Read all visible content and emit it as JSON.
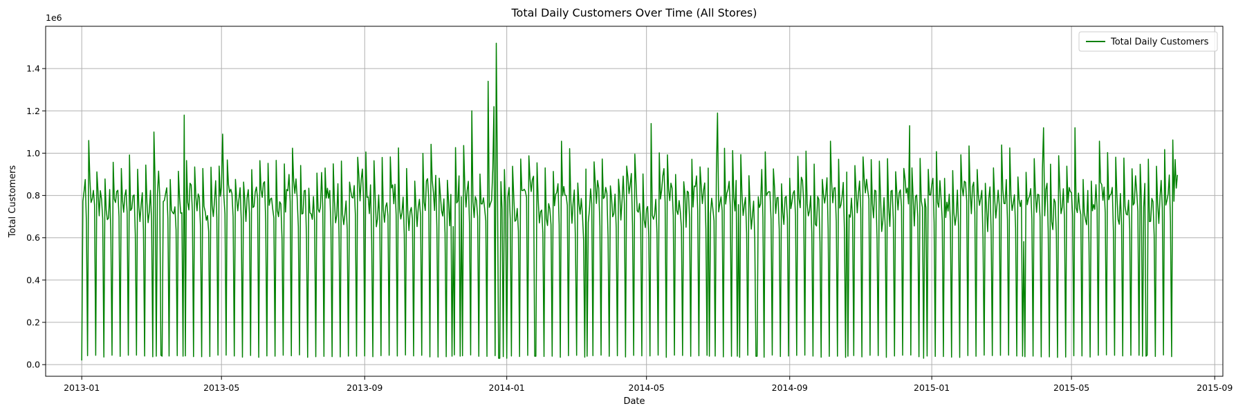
{
  "chart_data": {
    "type": "line",
    "title": "Total Daily Customers Over Time (All Stores)",
    "xlabel": "Date",
    "ylabel": "Total Customers",
    "y_offset_label": "1e6",
    "x_range": [
      "2012-12-01",
      "2015-09-08"
    ],
    "x_ticks": [
      "2013-01",
      "2013-05",
      "2013-09",
      "2014-01",
      "2014-05",
      "2014-09",
      "2015-01",
      "2015-05",
      "2015-09"
    ],
    "y_ticks": [
      "0.0",
      "0.2",
      "0.4",
      "0.6",
      "0.8",
      "1.0",
      "1.2",
      "1.4"
    ],
    "ylim": [
      -0.055,
      1.6
    ],
    "y_unit_multiplier": 1000000,
    "grid": true,
    "legend_position": "top-right",
    "line_color": "#008000",
    "series": [
      {
        "name": "Total Daily Customers",
        "start_date": "2013-01-01",
        "end_date": "2015-07-31",
        "sunday_value": 0.04,
        "weekly_pattern": [
          0.95,
          0.78,
          0.74,
          0.78,
          0.82,
          0.68,
          0.04
        ],
        "notable_points": [
          {
            "date": "2013-01-01",
            "value": 0.02
          },
          {
            "date": "2013-01-07",
            "value": 1.06
          },
          {
            "date": "2013-03-04",
            "value": 1.1
          },
          {
            "date": "2013-03-30",
            "value": 1.18
          },
          {
            "date": "2013-05-02",
            "value": 1.09
          },
          {
            "date": "2013-12-02",
            "value": 1.2
          },
          {
            "date": "2013-12-16",
            "value": 1.34
          },
          {
            "date": "2013-12-21",
            "value": 1.22
          },
          {
            "date": "2013-12-23",
            "value": 1.52
          },
          {
            "date": "2013-12-25",
            "value": 0.03
          },
          {
            "date": "2013-12-26",
            "value": 0.03
          },
          {
            "date": "2014-01-01",
            "value": 0.03
          },
          {
            "date": "2014-05-05",
            "value": 1.14
          },
          {
            "date": "2014-07-01",
            "value": 1.19
          },
          {
            "date": "2014-12-13",
            "value": 1.13
          },
          {
            "date": "2014-12-25",
            "value": 0.03
          },
          {
            "date": "2015-04-07",
            "value": 1.12
          },
          {
            "date": "2015-05-04",
            "value": 1.12
          },
          {
            "date": "2015-07-29",
            "value": 0.97
          }
        ]
      }
    ]
  }
}
